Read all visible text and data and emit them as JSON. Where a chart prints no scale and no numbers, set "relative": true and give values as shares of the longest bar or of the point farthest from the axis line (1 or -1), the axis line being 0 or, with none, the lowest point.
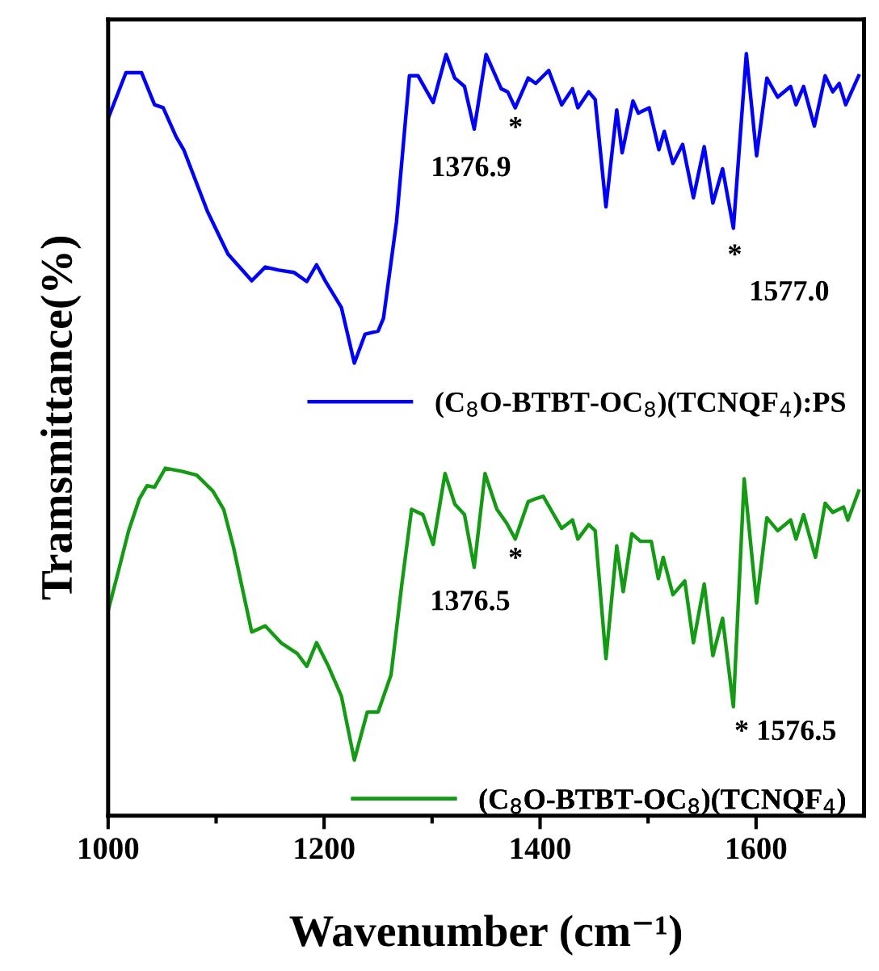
{
  "chart_data": {
    "type": "line",
    "relative": true,
    "xlabel": "Wavenumber (cm⁻¹)",
    "ylabel": "Tramsmittance(%)",
    "xlim": [
      1000,
      1700
    ],
    "xticks": [
      1000,
      {
        "value": 1100,
        "label": null
      },
      1200,
      {
        "value": 1300,
        "label": null
      },
      1400,
      {
        "value": 1500,
        "label": null
      },
      1600
    ],
    "tick_labels": "x",
    "grid": false,
    "legend": "right",
    "marker": "none",
    "line_style": "solid",
    "series": [
      {
        "name": "(C$_{8}$O-BTBT-OC$_{8}$)(TCNQF$_{4}$):PS",
        "color": "#0000ff",
        "x": [
          1000,
          1016.5,
          1031,
          1043,
          1051,
          1063,
          1070,
          1092,
          1111,
          1133,
          1145.5,
          1158,
          1172,
          1184,
          1193,
          1201,
          1216,
          1228,
          1238,
          1250,
          1255,
          1267,
          1279,
          1287,
          1301,
          1313,
          1321,
          1330,
          1339,
          1350,
          1364,
          1370,
          1377,
          1389,
          1396,
          1408,
          1420,
          1430,
          1435,
          1445,
          1451,
          1461,
          1471,
          1476,
          1486,
          1491,
          1501,
          1510,
          1515,
          1523,
          1532,
          1542,
          1552,
          1560,
          1569,
          1579,
          1591,
          1600.5,
          1610,
          1620,
          1632,
          1637,
          1644,
          1654,
          1664,
          1671,
          1677,
          1683,
          1695
        ],
        "values": [
          0.915,
          0.975,
          0.975,
          0.933,
          0.929,
          0.891,
          0.874,
          0.793,
          0.737,
          0.702,
          0.72,
          0.716,
          0.713,
          0.701,
          0.723,
          0.702,
          0.667,
          0.594,
          0.632,
          0.636,
          0.653,
          0.779,
          0.971,
          0.971,
          0.936,
          0.999,
          0.968,
          0.957,
          0.901,
          0.999,
          0.954,
          0.95,
          0.929,
          0.968,
          0.961,
          0.978,
          0.933,
          0.954,
          0.929,
          0.95,
          0.94,
          0.799,
          0.926,
          0.87,
          0.938,
          0.922,
          0.929,
          0.874,
          0.898,
          0.856,
          0.881,
          0.811,
          0.878,
          0.804,
          0.849,
          0.771,
          1.0,
          0.866,
          0.968,
          0.943,
          0.957,
          0.933,
          0.957,
          0.905,
          0.971,
          0.95,
          0.961,
          0.933,
          0.971
        ]
      },
      {
        "name": "(C$_{8}$O-BTBT-OC$_{8}$)(TCNQF$_{4}$)",
        "color": "#139b13",
        "x": [
          1000,
          1009,
          1019,
          1029,
          1036,
          1043,
          1053,
          1068,
          1082,
          1097,
          1107,
          1116,
          1133,
          1145.5,
          1160,
          1175,
          1184,
          1193,
          1204,
          1216,
          1228,
          1240,
          1250,
          1262,
          1272,
          1281,
          1291.5,
          1301,
          1312,
          1321,
          1330,
          1339,
          1349,
          1360,
          1369,
          1377,
          1389,
          1396,
          1403,
          1420,
          1430,
          1435,
          1445,
          1451,
          1461,
          1471,
          1477,
          1485,
          1493,
          1503,
          1509.5,
          1514,
          1523,
          1534,
          1542,
          1552,
          1560,
          1569,
          1579,
          1589,
          1600.5,
          1610,
          1620,
          1632,
          1637,
          1644,
          1655,
          1664,
          1671,
          1681,
          1685,
          1695
        ],
        "values": [
          0.269,
          0.318,
          0.374,
          0.416,
          0.433,
          0.431,
          0.456,
          0.452,
          0.447,
          0.426,
          0.402,
          0.353,
          0.241,
          0.249,
          0.227,
          0.213,
          0.196,
          0.227,
          0.196,
          0.157,
          0.073,
          0.136,
          0.136,
          0.185,
          0.304,
          0.402,
          0.395,
          0.356,
          0.449,
          0.409,
          0.395,
          0.326,
          0.449,
          0.402,
          0.384,
          0.363,
          0.412,
          0.416,
          0.419,
          0.377,
          0.388,
          0.363,
          0.382,
          0.374,
          0.206,
          0.354,
          0.294,
          0.37,
          0.36,
          0.36,
          0.311,
          0.339,
          0.29,
          0.308,
          0.227,
          0.304,
          0.21,
          0.259,
          0.143,
          0.442,
          0.279,
          0.391,
          0.374,
          0.388,
          0.363,
          0.395,
          0.339,
          0.41,
          0.398,
          0.405,
          0.388,
          0.426
        ]
      }
    ],
    "annotations": [
      "*",
      "1376.9",
      "*",
      "1577.0",
      "*",
      "1376.5",
      "* 1576.5"
    ]
  }
}
